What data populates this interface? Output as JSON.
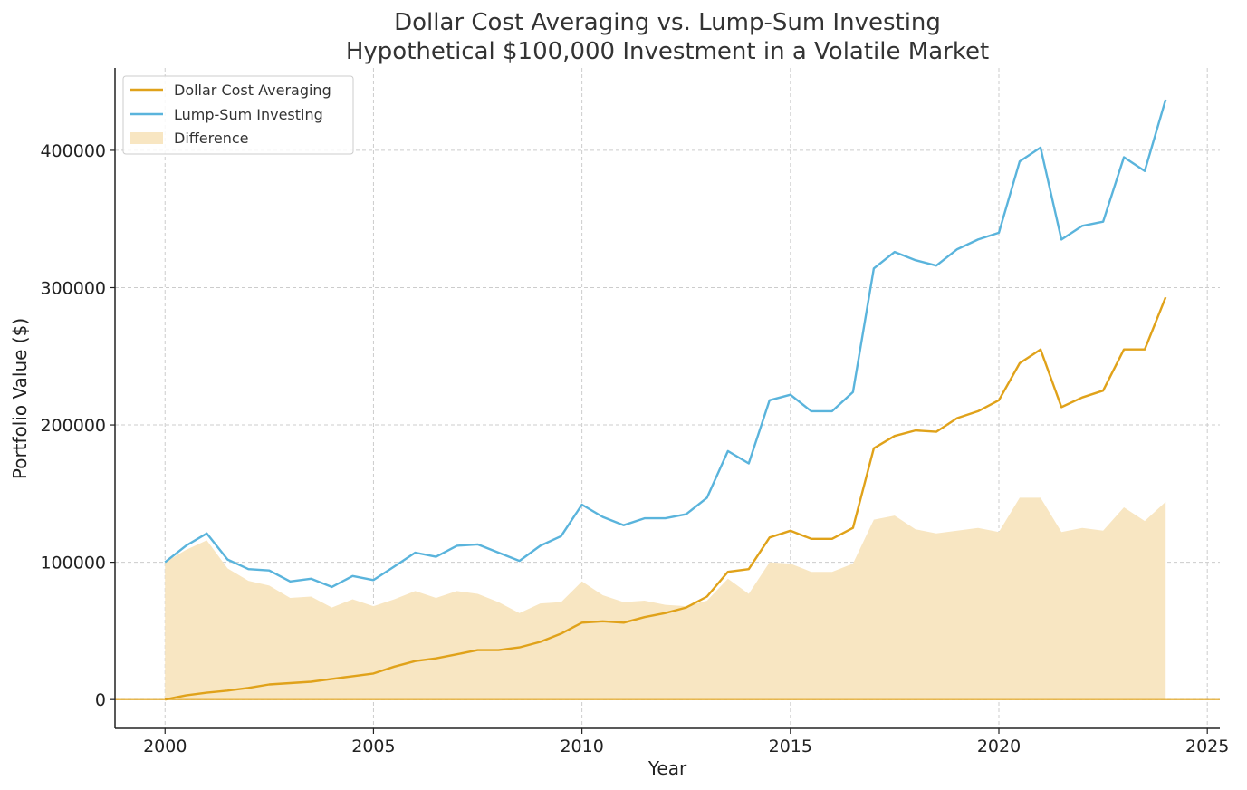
{
  "chart_data": {
    "type": "line",
    "title_line1": "Dollar Cost Averaging vs. Lump-Sum Investing",
    "title_line2": "Hypothetical $100,000 Investment in a Volatile Market",
    "xlabel": "Year",
    "ylabel": "Portfolio Value ($)",
    "xlim": [
      1998.8,
      2025.3
    ],
    "ylim": [
      -21000,
      460000
    ],
    "xticks": [
      2000,
      2005,
      2010,
      2015,
      2020,
      2025
    ],
    "xtick_labels": [
      "2000",
      "2005",
      "2010",
      "2015",
      "2020",
      "2025"
    ],
    "yticks": [
      0,
      100000,
      200000,
      300000,
      400000
    ],
    "ytick_labels": [
      "0",
      "100000",
      "200000",
      "300000",
      "400000"
    ],
    "grid": true,
    "legend_position": "top-left",
    "legend": [
      "Dollar Cost Averaging",
      "Lump-Sum Investing",
      "Difference"
    ],
    "colors": {
      "dca": "#E0A21A",
      "lump": "#5AB4DC",
      "difference": "#F8E6C2"
    },
    "x": [
      2000.0,
      2000.5,
      2001.0,
      2001.5,
      2002.0,
      2002.5,
      2003.0,
      2003.5,
      2004.0,
      2004.5,
      2005.0,
      2005.5,
      2006.0,
      2006.5,
      2007.0,
      2007.5,
      2008.0,
      2008.5,
      2009.0,
      2009.5,
      2010.0,
      2010.5,
      2011.0,
      2011.5,
      2012.0,
      2012.5,
      2013.0,
      2013.5,
      2014.0,
      2014.5,
      2015.0,
      2015.5,
      2016.0,
      2016.5,
      2017.0,
      2017.5,
      2018.0,
      2018.5,
      2019.0,
      2019.5,
      2020.0,
      2020.5,
      2021.0,
      2021.5,
      2022.0,
      2022.5,
      2023.0,
      2023.5,
      2024.0
    ],
    "series": [
      {
        "name": "Dollar Cost Averaging",
        "values": [
          0,
          3000,
          5000,
          6500,
          8500,
          11000,
          12000,
          13000,
          15000,
          17000,
          19000,
          24000,
          28000,
          30000,
          33000,
          36000,
          36000,
          38000,
          42000,
          48000,
          56000,
          57000,
          56000,
          60000,
          63000,
          67000,
          75000,
          93000,
          95000,
          118000,
          123000,
          117000,
          117000,
          125000,
          183000,
          192000,
          196000,
          195000,
          205000,
          210000,
          218000,
          245000,
          255000,
          213000,
          220000,
          225000,
          255000,
          255000,
          293000
        ]
      },
      {
        "name": "Lump-Sum Investing",
        "values": [
          100000,
          112000,
          121000,
          102000,
          95000,
          94000,
          86000,
          88000,
          82000,
          90000,
          87000,
          97000,
          107000,
          104000,
          112000,
          113000,
          107000,
          101000,
          112000,
          119000,
          142000,
          133000,
          127000,
          132000,
          132000,
          135000,
          147000,
          181000,
          172000,
          218000,
          222000,
          210000,
          210000,
          224000,
          314000,
          326000,
          320000,
          316000,
          328000,
          335000,
          340000,
          392000,
          402000,
          335000,
          345000,
          348000,
          395000,
          385000,
          437000
        ]
      },
      {
        "name": "Difference",
        "values": [
          100000,
          109000,
          116000,
          95500,
          86500,
          83000,
          74000,
          75000,
          67000,
          73000,
          68000,
          73000,
          79000,
          74000,
          79000,
          77000,
          71000,
          63000,
          70000,
          71000,
          86000,
          76000,
          71000,
          72000,
          69000,
          68000,
          72000,
          88000,
          77000,
          100000,
          99000,
          93000,
          93000,
          99000,
          131000,
          134000,
          124000,
          121000,
          123000,
          125000,
          122000,
          147000,
          147000,
          122000,
          125000,
          123000,
          140000,
          130000,
          144000
        ]
      }
    ]
  }
}
